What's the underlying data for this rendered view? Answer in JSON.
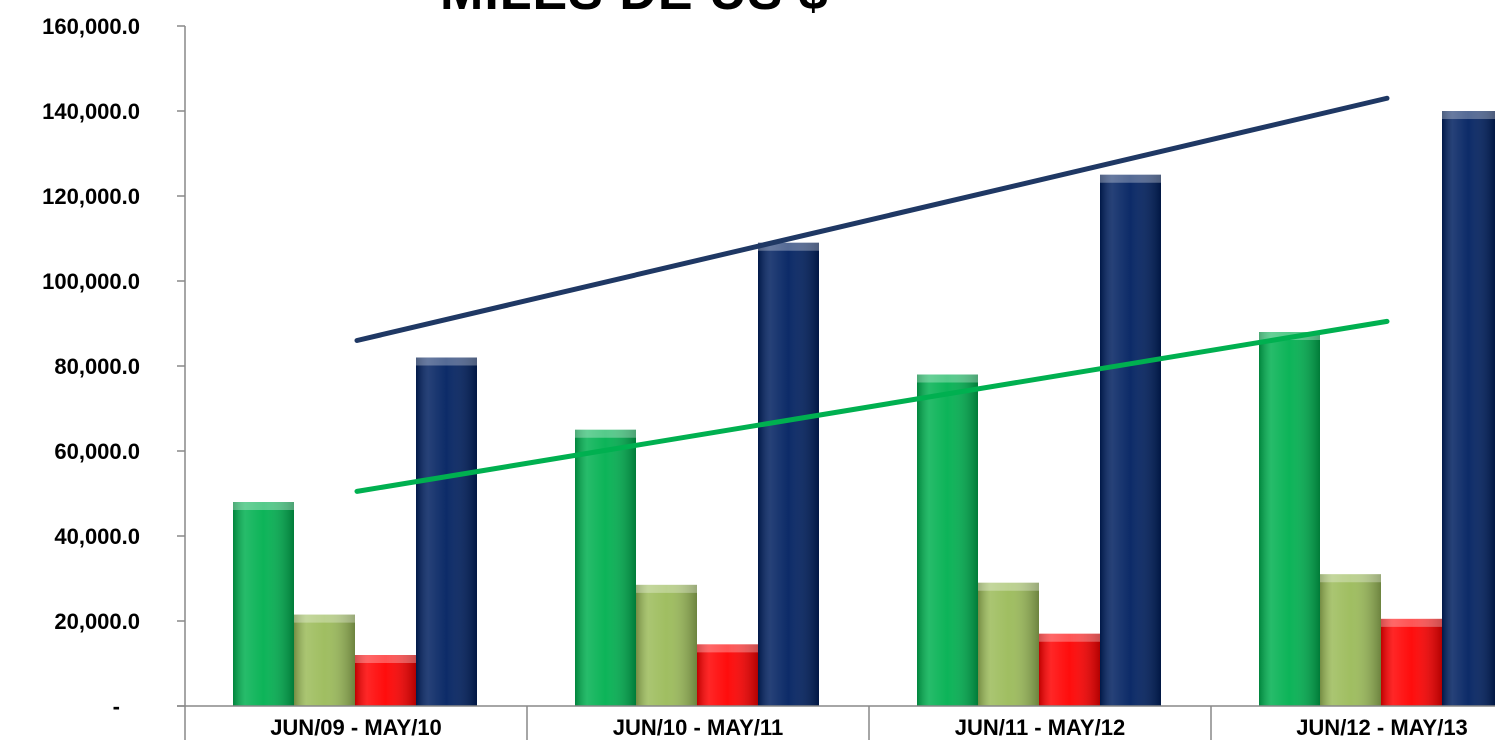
{
  "chart_data": {
    "type": "bar",
    "title": "MILES DE US $",
    "categories": [
      "JUN/09 - MAY/10",
      "JUN/10 - MAY/11",
      "JUN/11 - MAY/12",
      "JUN/12 - MAY/13"
    ],
    "series": [
      {
        "values": [
          48000,
          65000,
          78000,
          88000
        ],
        "color": "#00b050"
      },
      {
        "values": [
          21500,
          28500,
          29000,
          31000
        ],
        "color": "#9bbb59"
      },
      {
        "values": [
          12000,
          14500,
          17000,
          20500
        ],
        "color": "#ff0000"
      },
      {
        "values": [
          82000,
          109000,
          125000,
          140000
        ],
        "color": "#002060"
      }
    ],
    "trendlines": [
      {
        "start": 86000,
        "end": 143000,
        "color": "#1f3864"
      },
      {
        "start": 50500,
        "end": 90500,
        "color": "#00b050"
      }
    ],
    "yticks": [
      "-",
      "20,000.0",
      "40,000.0",
      "60,000.0",
      "80,000.0",
      "100,000.0",
      "120,000.0",
      "140,000.0",
      "160,000.0"
    ],
    "ylim": [
      0,
      160000
    ],
    "grid": false,
    "legend": "none"
  }
}
